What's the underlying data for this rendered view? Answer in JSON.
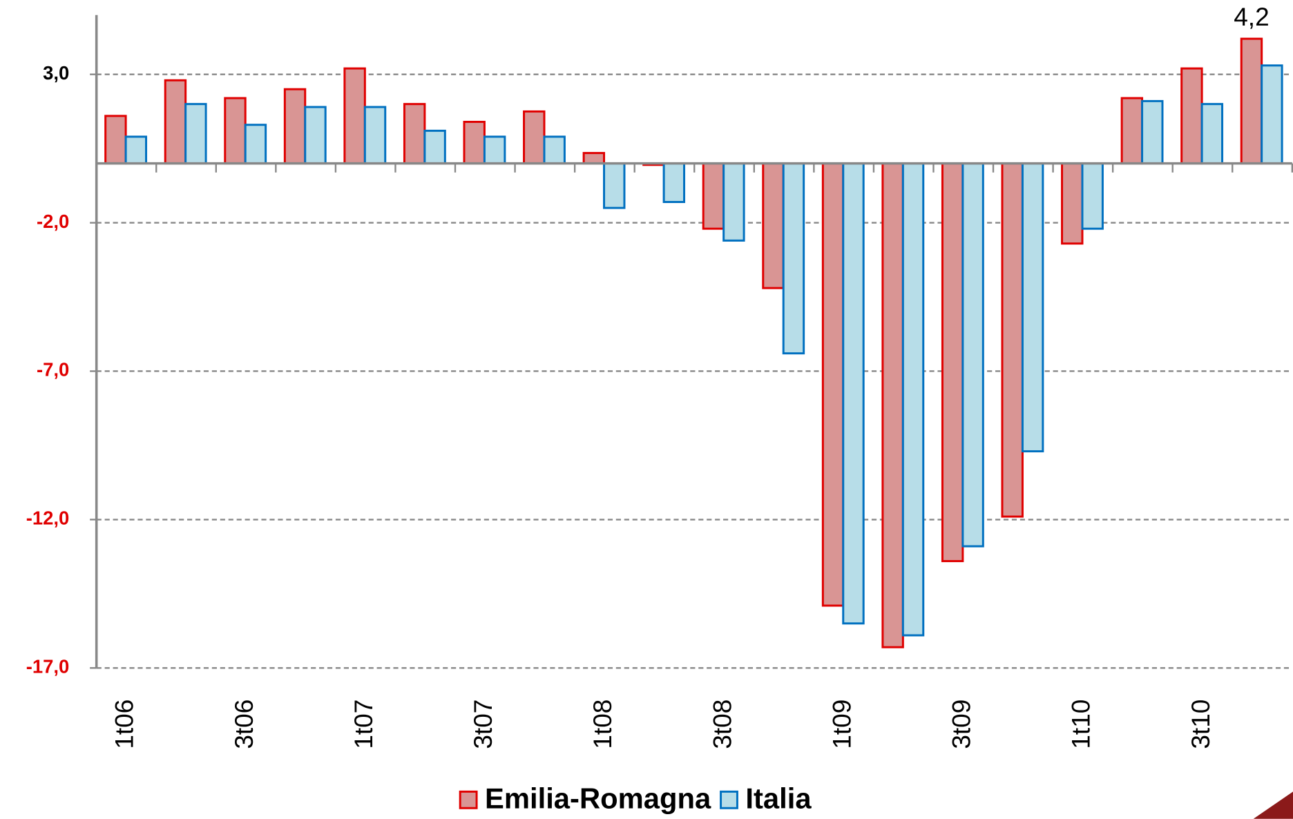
{
  "chart_data": {
    "type": "bar",
    "categories": [
      "1t06",
      null,
      "3t06",
      null,
      "1t07",
      null,
      "3t07",
      null,
      "1t08",
      null,
      "3t08",
      null,
      "1t09",
      null,
      "3t09",
      null,
      "1t10",
      null,
      "3t10",
      null
    ],
    "series": [
      {
        "name": "Emilia-Romagna",
        "color": "#d99594",
        "stroke": "#e00000",
        "values": [
          1.6,
          2.8,
          2.2,
          2.5,
          3.2,
          2.0,
          1.4,
          1.75,
          0.35,
          -0.05,
          -2.2,
          -4.2,
          -14.9,
          -16.3,
          -13.4,
          -11.9,
          -2.7,
          2.2,
          3.2,
          4.2
        ],
        "value_labels": [
          null,
          null,
          null,
          null,
          null,
          null,
          null,
          null,
          null,
          null,
          null,
          null,
          null,
          null,
          null,
          null,
          null,
          null,
          null,
          "4,2"
        ]
      },
      {
        "name": "Italia",
        "color": "#b7dde8",
        "stroke": "#0070c0",
        "values": [
          0.9,
          2.0,
          1.3,
          1.9,
          1.9,
          1.1,
          0.9,
          0.9,
          -1.5,
          -1.3,
          -2.6,
          -6.4,
          -15.5,
          -15.9,
          -12.9,
          -9.7,
          -2.2,
          2.1,
          2.0,
          3.3
        ]
      }
    ],
    "ylim": [
      -17,
      5
    ],
    "yticks": [
      {
        "value": 3,
        "label": "3,0"
      },
      {
        "value": -2,
        "label": "-2,0"
      },
      {
        "value": -7,
        "label": "-7,0"
      },
      {
        "value": -12,
        "label": "-12,0"
      },
      {
        "value": -17,
        "label": "-17,0"
      }
    ],
    "grid": true,
    "legend": "bottom"
  }
}
